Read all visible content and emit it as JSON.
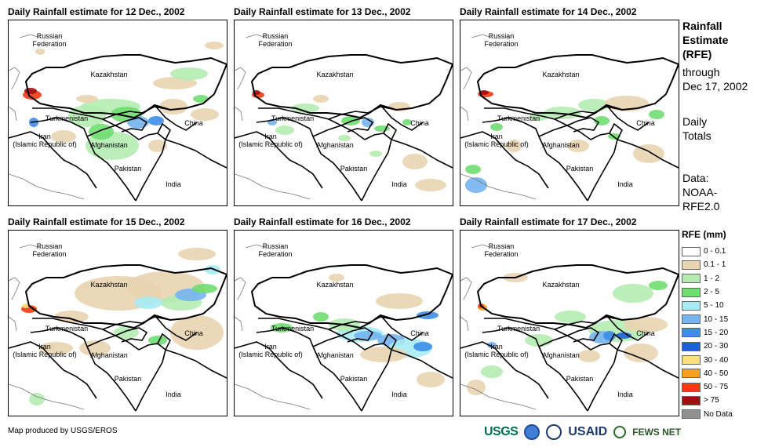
{
  "panels": [
    {
      "title": "Daily Rainfall estimate for 12 Dec., 2002",
      "day": 12
    },
    {
      "title": "Daily Rainfall estimate for 13 Dec., 2002",
      "day": 13
    },
    {
      "title": "Daily Rainfall estimate for 14 Dec., 2002",
      "day": 14
    },
    {
      "title": "Daily Rainfall estimate for 15 Dec., 2002",
      "day": 15
    },
    {
      "title": "Daily Rainfall estimate for 16 Dec., 2002",
      "day": 16
    },
    {
      "title": "Daily Rainfall estimate for 17 Dec., 2002",
      "day": 17
    }
  ],
  "map_labels": {
    "russia": [
      "Russian",
      "Federation"
    ],
    "kazakhstan": "Kazakhstan",
    "turkmenistan": "Turkmenistan",
    "iran": [
      "Iran",
      "(Islamic Republic of)"
    ],
    "afghanistan": "Afghanistan",
    "pakistan": "Pakistan",
    "china": "China",
    "india": "India"
  },
  "side_info": {
    "heading": [
      "Rainfall",
      "Estimate",
      "(RFE)"
    ],
    "through": [
      "through",
      "Dec 17, 2002"
    ],
    "totals": [
      "Daily",
      "Totals"
    ],
    "source": [
      "Data:",
      "NOAA-",
      "RFE2.0"
    ]
  },
  "legend": {
    "title": "RFE (mm)",
    "items": [
      {
        "label": "0 - 0.1",
        "color": "#ffffff"
      },
      {
        "label": "0.1 - 1",
        "color": "#e9d4b0"
      },
      {
        "label": "1 - 2",
        "color": "#b4ecb0"
      },
      {
        "label": "2 - 5",
        "color": "#70dd70"
      },
      {
        "label": "5 - 10",
        "color": "#a6ecf5"
      },
      {
        "label": "10 - 15",
        "color": "#74b4f0"
      },
      {
        "label": "15 - 20",
        "color": "#3d8ee8"
      },
      {
        "label": "20 - 30",
        "color": "#1a5fdc"
      },
      {
        "label": "30 - 40",
        "color": "#fbe07a"
      },
      {
        "label": "40 - 50",
        "color": "#f5a020"
      },
      {
        "label": "50 - 75",
        "color": "#f03c10"
      },
      {
        "label": "> 75",
        "color": "#a01010"
      },
      {
        "label": "No Data",
        "color": "#909090"
      }
    ]
  },
  "credit": "Map produced by USGS/EROS",
  "logos": {
    "usgs": "USGS",
    "usaid": "USAID",
    "fews": "FEWS NET"
  }
}
